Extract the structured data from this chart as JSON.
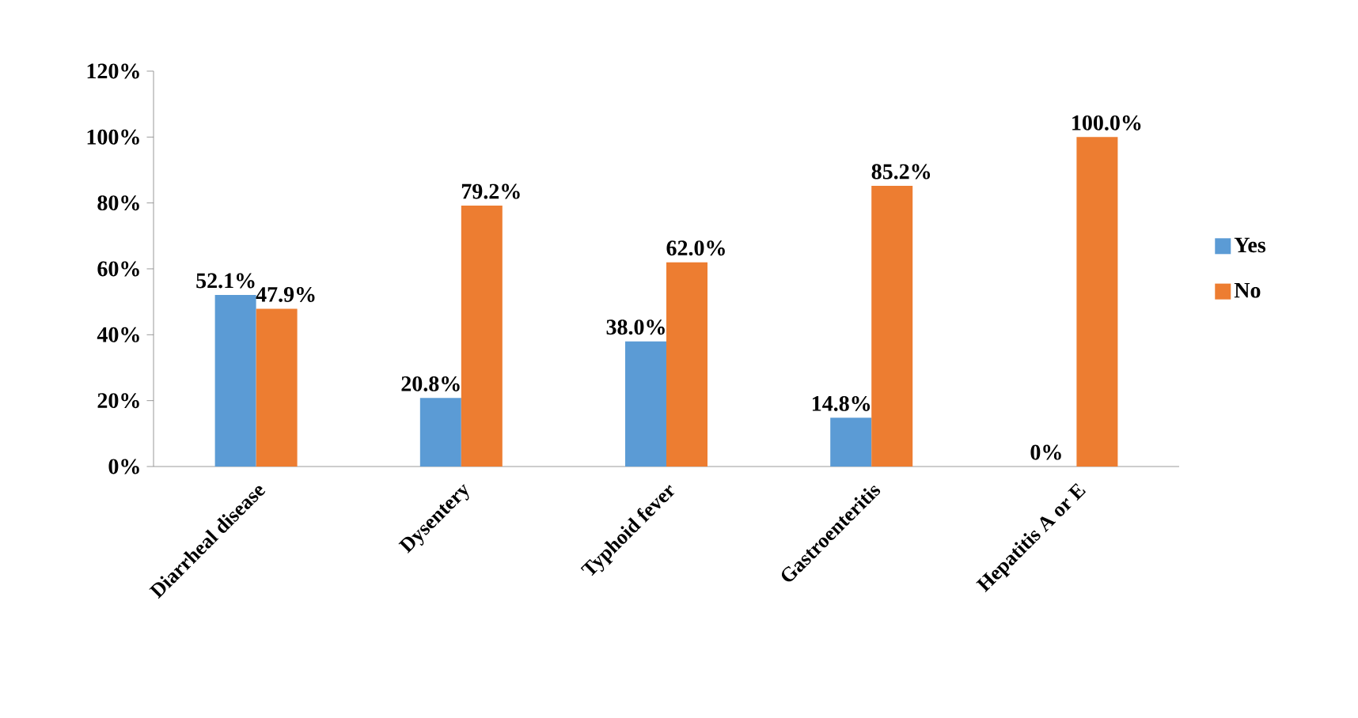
{
  "chart_data": {
    "type": "bar",
    "categories": [
      "Diarrheal disease",
      "Dysentery",
      "Typhoid fever",
      "Gastroenteritis",
      "Hepatitis A or E"
    ],
    "series": [
      {
        "name": "Yes",
        "color": "#5b9bd5",
        "values": [
          52.1,
          20.8,
          38.0,
          14.8,
          0
        ],
        "value_labels": [
          "52.1%",
          "20.8%",
          "38.0%",
          "14.8%",
          "0%"
        ]
      },
      {
        "name": "No",
        "color": "#ed7d31",
        "values": [
          47.9,
          79.2,
          62.0,
          85.2,
          100.0
        ],
        "value_labels": [
          "47.9%",
          "79.2%",
          "62.0%",
          "85.2%",
          "100.0%"
        ]
      }
    ],
    "ylim": [
      0,
      120
    ],
    "yticks": [
      {
        "value": 0,
        "label": "0%"
      },
      {
        "value": 20,
        "label": "20%"
      },
      {
        "value": 40,
        "label": "40%"
      },
      {
        "value": 60,
        "label": "60%"
      },
      {
        "value": 80,
        "label": "80%"
      },
      {
        "value": 100,
        "label": "100%"
      },
      {
        "value": 120,
        "label": "120%"
      }
    ],
    "legend": "right"
  }
}
